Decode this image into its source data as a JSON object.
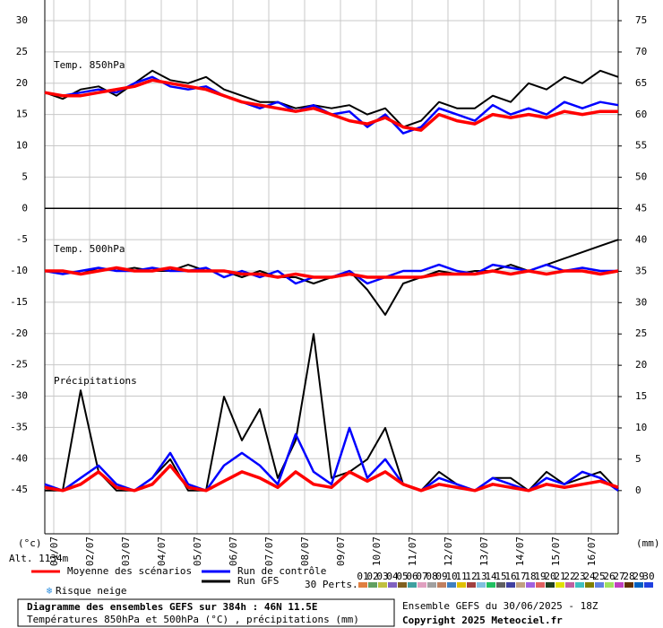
{
  "chart_data": {
    "type": "line",
    "ylabel": "(°c)",
    "y2label": "(mm)",
    "altitude": "Alt. 1134m",
    "x": [
      0,
      12,
      24,
      36,
      48,
      60,
      72,
      84,
      96,
      108,
      120,
      132,
      144,
      156,
      168,
      180,
      192,
      204,
      216,
      228,
      240,
      252,
      264,
      276,
      288,
      300,
      312,
      324,
      336,
      348,
      360,
      372,
      384
    ],
    "xlim": [
      0,
      384
    ],
    "xticks": [
      {
        "value": 6,
        "label": "01/07"
      },
      {
        "value": 30,
        "label": "02/07"
      },
      {
        "value": 54,
        "label": "03/07"
      },
      {
        "value": 78,
        "label": "04/07"
      },
      {
        "value": 102,
        "label": "05/07"
      },
      {
        "value": 126,
        "label": "06/07"
      },
      {
        "value": 150,
        "label": "07/07"
      },
      {
        "value": 174,
        "label": "08/07"
      },
      {
        "value": 198,
        "label": "09/07"
      },
      {
        "value": 222,
        "label": "10/07"
      },
      {
        "value": 246,
        "label": "11/07"
      },
      {
        "value": 270,
        "label": "12/07"
      },
      {
        "value": 294,
        "label": "13/07"
      },
      {
        "value": 318,
        "label": "14/07"
      },
      {
        "value": 342,
        "label": "15/07"
      },
      {
        "value": 366,
        "label": "16/07"
      }
    ],
    "ylim": [
      -52,
      33.3
    ],
    "yticks": [
      30,
      25,
      20,
      15,
      10,
      5,
      0,
      -5,
      -10,
      -15,
      -20,
      -25,
      -30,
      -35,
      -40,
      -45
    ],
    "y2lim": [
      -6.9,
      78.3
    ],
    "y2ticks": [
      75,
      70,
      65,
      60,
      55,
      50,
      45,
      40,
      35,
      30,
      25,
      20,
      15,
      10,
      5,
      0
    ],
    "grid": true,
    "panels": [
      {
        "title": "Temp. 850hPa",
        "series": [
          {
            "name": "Moyenne des scénarios",
            "color": "#ff0000",
            "axis": "y",
            "values": [
              18.5,
              18,
              18,
              18.5,
              19,
              19.5,
              20.5,
              20,
              19.5,
              19,
              18,
              17,
              16.5,
              16,
              15.5,
              16,
              15,
              14,
              13.5,
              14.5,
              13,
              12.5,
              15,
              14,
              13.5,
              15,
              14.5,
              15,
              14.5,
              15.5,
              15,
              15.5,
              15.5
            ]
          },
          {
            "name": "Run de contrôle",
            "color": "#0000ff",
            "axis": "y",
            "values": [
              18.5,
              18,
              18.5,
              19,
              18.5,
              20,
              21,
              19.5,
              19,
              19.5,
              18,
              17,
              16,
              17,
              15.5,
              16.5,
              15,
              15.5,
              13,
              15,
              12,
              13,
              16,
              15,
              14,
              16.5,
              15,
              16,
              15,
              17,
              16,
              17,
              16.5
            ]
          },
          {
            "name": "Run GFS",
            "color": "#000000",
            "axis": "y",
            "values": [
              18.5,
              17.5,
              19,
              19.5,
              18,
              20,
              22,
              20.5,
              20,
              21,
              19,
              18,
              17,
              17,
              16,
              16.5,
              16,
              16.5,
              15,
              16,
              13,
              14,
              17,
              16,
              16,
              18,
              17,
              20,
              19,
              21,
              20,
              22,
              21
            ]
          }
        ]
      },
      {
        "title": "Temp. 500hPa",
        "series": [
          {
            "name": "Moyenne des scénarios",
            "color": "#ff0000",
            "axis": "y",
            "values": [
              -10,
              -10,
              -10.5,
              -10,
              -9.5,
              -10,
              -10,
              -9.5,
              -10,
              -10,
              -10,
              -10.5,
              -10.5,
              -11,
              -10.5,
              -11,
              -11,
              -10.5,
              -11,
              -11,
              -11,
              -11,
              -10.5,
              -10.5,
              -10.5,
              -10,
              -10.5,
              -10,
              -10.5,
              -10,
              -10,
              -10.5,
              -10
            ]
          },
          {
            "name": "Run de contrôle",
            "color": "#0000ff",
            "axis": "y",
            "values": [
              -10,
              -10.5,
              -10,
              -9.5,
              -10,
              -10,
              -9.5,
              -10,
              -10,
              -9.5,
              -11,
              -10,
              -11,
              -10,
              -12,
              -11,
              -11,
              -10,
              -12,
              -11,
              -10,
              -10,
              -9,
              -10,
              -10.5,
              -9,
              -9.5,
              -10,
              -9,
              -10,
              -9.5,
              -10,
              -10
            ]
          },
          {
            "name": "Run GFS",
            "color": "#000000",
            "axis": "y",
            "values": [
              -10,
              -10,
              -10.5,
              -9.5,
              -10,
              -9.5,
              -10,
              -10,
              -9,
              -10,
              -10,
              -11,
              -10,
              -11,
              -11,
              -12,
              -11,
              -10,
              -13,
              -17,
              -12,
              -11,
              -10,
              -10.5,
              -10,
              -10,
              -9,
              -10,
              -9,
              -8,
              -7,
              -6,
              -5
            ]
          }
        ]
      },
      {
        "title": "Précipitations",
        "series": [
          {
            "name": "Moyenne des scénarios",
            "color": "#ff0000",
            "axis": "y2",
            "values": [
              0.5,
              0,
              1,
              3,
              0.5,
              0,
              1,
              4,
              0.5,
              0,
              1.5,
              3,
              2,
              0.5,
              3,
              1,
              0.5,
              3,
              1.5,
              3,
              1,
              0,
              1,
              0.5,
              0,
              1,
              0.5,
              0,
              1,
              0.5,
              1,
              1.5,
              0.5
            ]
          },
          {
            "name": "Run de contrôle",
            "color": "#0000ff",
            "axis": "y2",
            "values": [
              1,
              0,
              2,
              4,
              1,
              0,
              2,
              6,
              1,
              0,
              4,
              6,
              4,
              1,
              9,
              3,
              1,
              10,
              2,
              5,
              1,
              0,
              2,
              1,
              0,
              2,
              1,
              0,
              2,
              1,
              3,
              2,
              0
            ]
          },
          {
            "name": "Run GFS",
            "color": "#000000",
            "axis": "y2",
            "values": [
              0,
              0,
              16,
              3,
              0,
              0,
              2,
              5,
              0,
              0,
              15,
              8,
              13,
              2,
              8,
              25,
              2,
              3,
              5,
              10,
              1,
              0,
              3,
              1,
              0,
              2,
              2,
              0,
              3,
              1,
              2,
              3,
              0
            ]
          }
        ]
      }
    ],
    "snow_label": "Risque neige",
    "perturbations_label": "30 Perts.",
    "perturbations": [
      {
        "label": "01",
        "color": "#e08040"
      },
      {
        "label": "02",
        "color": "#60a060"
      },
      {
        "label": "03",
        "color": "#c0c040"
      },
      {
        "label": "04",
        "color": "#8060c0"
      },
      {
        "label": "05",
        "color": "#806020"
      },
      {
        "label": "06",
        "color": "#40a0a0"
      },
      {
        "label": "07",
        "color": "#e0a0c0"
      },
      {
        "label": "08",
        "color": "#a0a0a0"
      },
      {
        "label": "09",
        "color": "#c08060"
      },
      {
        "label": "10",
        "color": "#4080c0"
      },
      {
        "label": "11",
        "color": "#e0c000"
      },
      {
        "label": "12",
        "color": "#a04040"
      },
      {
        "label": "13",
        "color": "#80c0e0"
      },
      {
        "label": "14",
        "color": "#20c060"
      },
      {
        "label": "15",
        "color": "#606060"
      },
      {
        "label": "16",
        "color": "#4040a0"
      },
      {
        "label": "17",
        "color": "#c0a080"
      },
      {
        "label": "18",
        "color": "#a060e0"
      },
      {
        "label": "19",
        "color": "#e06060"
      },
      {
        "label": "20",
        "color": "#204020"
      },
      {
        "label": "21",
        "color": "#e0e000"
      },
      {
        "label": "22",
        "color": "#c060a0"
      },
      {
        "label": "23",
        "color": "#40c0c0"
      },
      {
        "label": "24",
        "color": "#808000"
      },
      {
        "label": "25",
        "color": "#6080e0"
      },
      {
        "label": "26",
        "color": "#a0e060"
      },
      {
        "label": "27",
        "color": "#c040c0"
      },
      {
        "label": "28",
        "color": "#603000"
      },
      {
        "label": "29",
        "color": "#0060c0"
      },
      {
        "label": "30",
        "color": "#2040e0"
      }
    ],
    "run_info": "Ensemble GEFS du 30/06/2025 - 18Z",
    "copyright": "Copyright 2025 Meteociel.fr",
    "title": "Diagramme des ensembles GEFS sur 384h : 46N 11.5E",
    "subtitle": "Températures 850hPa et 500hPa (°C) , précipitations (mm)"
  }
}
